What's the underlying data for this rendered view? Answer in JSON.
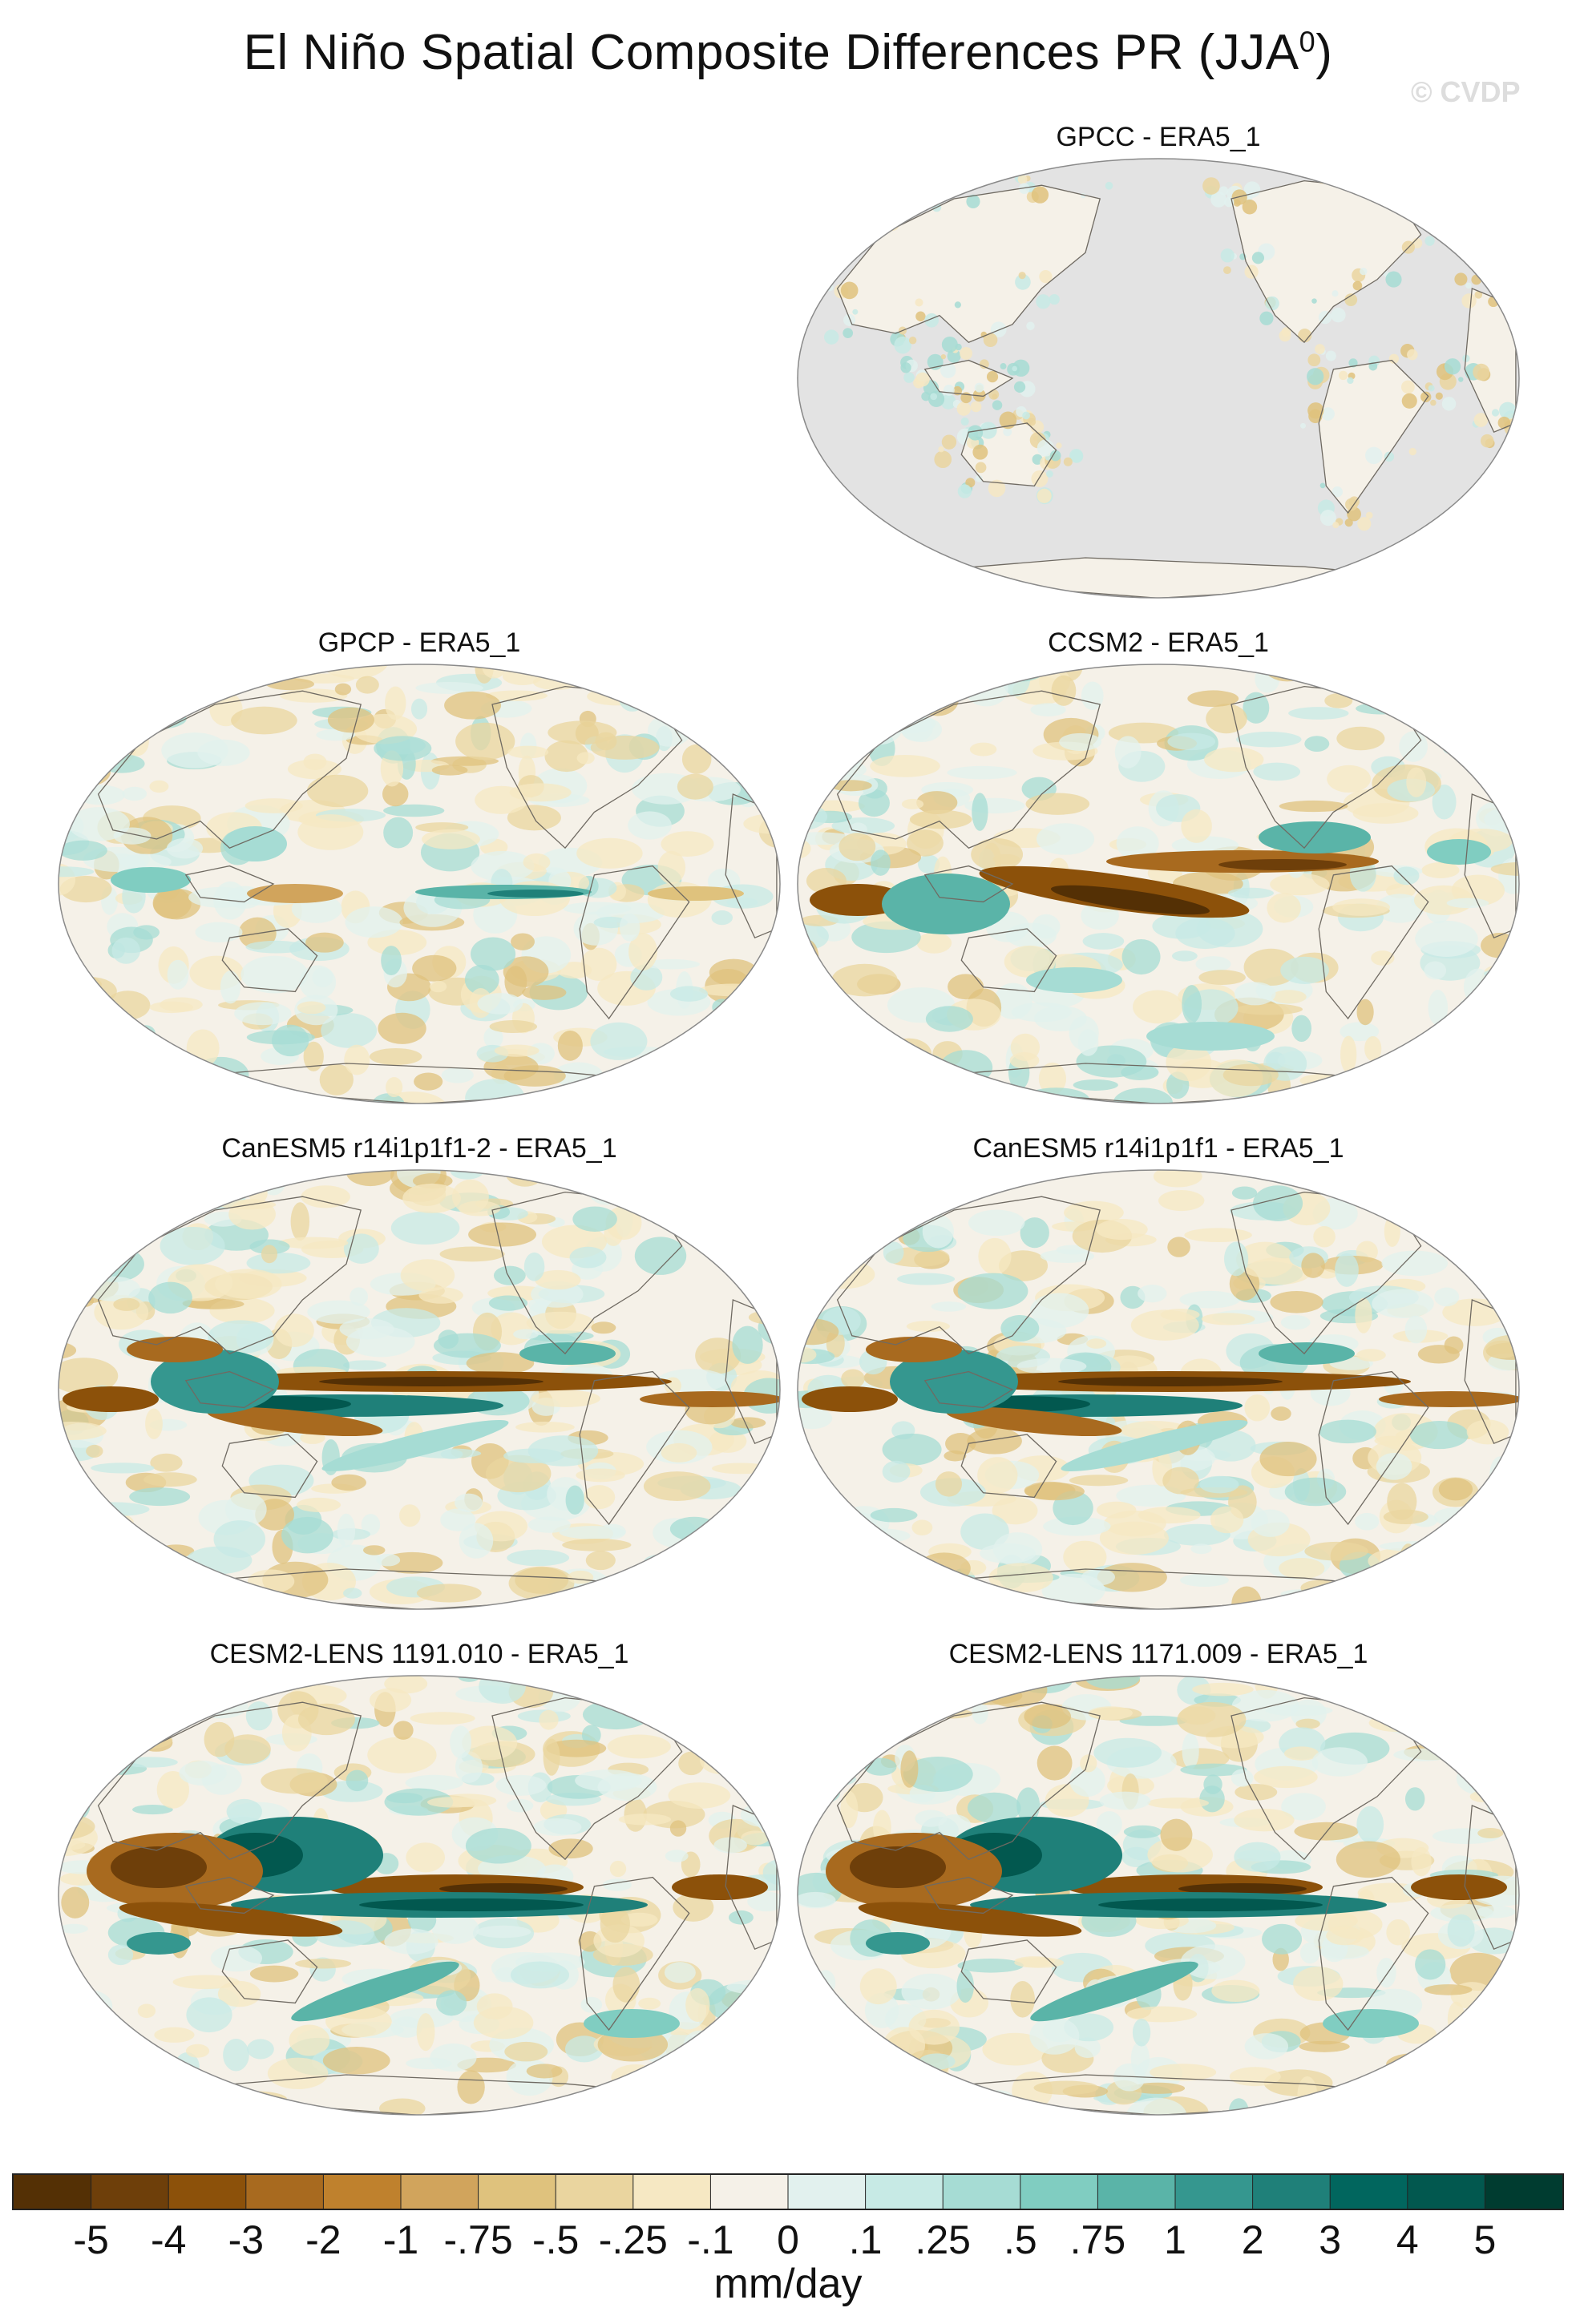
{
  "title": "El Niño Spatial Composite Differences PR (JJA",
  "title_sup": "0",
  "title_close": ")",
  "watermark": "© CVDP",
  "panels": [
    {
      "id": "gpcc",
      "label": "GPCC - ERA5_1",
      "style": "gpcc"
    },
    {
      "id": "gpcp",
      "label": "GPCP - ERA5_1",
      "style": "weak"
    },
    {
      "id": "ccsm2",
      "label": "CCSM2 - ERA5_1",
      "style": "ccsm2"
    },
    {
      "id": "canesm5a",
      "label": "CanESM5 r14i1p1f1-2 - ERA5_1",
      "style": "canesm"
    },
    {
      "id": "canesm5b",
      "label": "CanESM5 r14i1p1f1 - ERA5_1",
      "style": "canesm"
    },
    {
      "id": "cesm2a",
      "label": "CESM2-LENS 1191.010 - ERA5_1",
      "style": "cesm"
    },
    {
      "id": "cesm2b",
      "label": "CESM2-LENS 1171.009 - ERA5_1",
      "style": "cesm"
    }
  ],
  "colorbar": {
    "units": "mm/day",
    "colors": [
      "#543005",
      "#6e3f0a",
      "#8c510a",
      "#a86a1f",
      "#bf812d",
      "#d1a45c",
      "#dfc27d",
      "#ead59f",
      "#f6e8c3",
      "#f5f1e8",
      "#e2f1ee",
      "#c7eae5",
      "#a6dcd4",
      "#80cdc1",
      "#5ab4a8",
      "#35978f",
      "#1f8079",
      "#01665e",
      "#02584f",
      "#003c30"
    ],
    "labels": [
      "-5",
      "-4",
      "-3",
      "-2",
      "-1",
      "-.75",
      "-.5",
      "-.25",
      "-.1",
      "0",
      ".1",
      ".25",
      ".5",
      ".75",
      "1",
      "2",
      "3",
      "4",
      "5"
    ]
  },
  "chart_data": {
    "type": "heatmap",
    "title": "El Niño Spatial Composite Differences PR (JJA0)",
    "units": "mm/day",
    "levels": [
      -5,
      -4,
      -3,
      -2,
      -1,
      -0.75,
      -0.5,
      -0.25,
      -0.1,
      0,
      0.1,
      0.25,
      0.5,
      0.75,
      1,
      2,
      3,
      4,
      5
    ],
    "maps": [
      "GPCC - ERA5_1",
      "GPCP - ERA5_1",
      "CCSM2 - ERA5_1",
      "CanESM5 r14i1p1f1-2 - ERA5_1",
      "CanESM5 r14i1p1f1 - ERA5_1",
      "CESM2-LENS 1191.010 - ERA5_1",
      "CESM2-LENS 1171.009 - ERA5_1"
    ]
  }
}
